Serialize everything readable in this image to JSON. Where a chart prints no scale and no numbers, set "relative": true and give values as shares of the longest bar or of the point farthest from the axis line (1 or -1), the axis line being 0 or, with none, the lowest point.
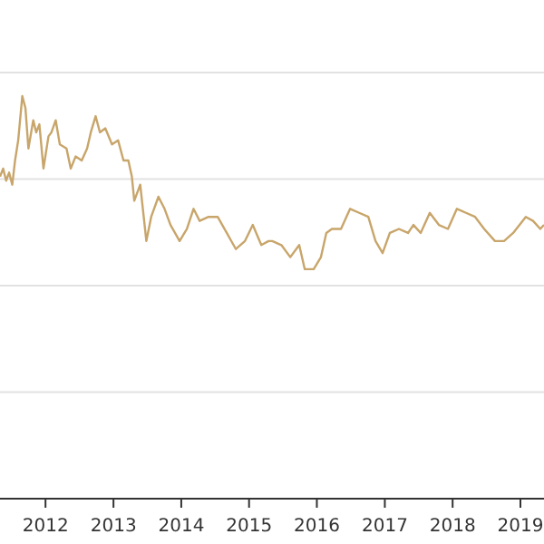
{
  "chart_data": {
    "type": "line",
    "relative": true,
    "grid": "y",
    "line_style": "solid",
    "xlim": [
      "2011-05-01",
      "2019-05-08"
    ],
    "xticks": [
      "2012",
      "2013",
      "2014",
      "2015",
      "2016",
      "2017",
      "2018",
      "2019"
    ],
    "series": [
      {
        "color": "#c8a56a",
        "x": [
          "2011-05-01",
          "2011-05-18",
          "2011-06-03",
          "2011-06-19",
          "2011-07-06",
          "2011-07-21",
          "2011-08-07",
          "2011-08-29",
          "2011-09-15",
          "2011-10-01",
          "2011-10-27",
          "2011-11-12",
          "2011-11-29",
          "2011-12-21",
          "2012-01-17",
          "2012-02-02",
          "2012-02-25",
          "2012-03-18",
          "2012-04-23",
          "2012-05-16",
          "2012-06-11",
          "2012-07-14",
          "2012-08-12",
          "2012-09-01",
          "2012-09-27",
          "2012-10-20",
          "2012-11-18",
          "2012-12-24",
          "2013-01-26",
          "2013-02-24",
          "2013-03-22",
          "2013-04-10",
          "2013-04-23",
          "2013-05-25",
          "2013-06-27",
          "2013-07-23",
          "2013-08-31",
          "2013-10-03",
          "2013-11-04",
          "2013-12-23",
          "2014-01-31",
          "2014-03-08",
          "2014-04-10",
          "2014-05-28",
          "2014-07-16",
          "2014-09-03",
          "2014-10-22",
          "2014-12-10",
          "2015-01-21",
          "2015-03-08",
          "2015-04-16",
          "2015-05-06",
          "2015-06-24",
          "2015-08-11",
          "2015-09-28",
          "2015-10-28",
          "2015-12-15",
          "2016-01-23",
          "2016-02-21",
          "2016-03-22",
          "2016-05-10",
          "2016-06-28",
          "2016-08-16",
          "2016-10-04",
          "2016-11-12",
          "2016-12-20",
          "2017-01-28",
          "2017-03-18",
          "2017-05-06",
          "2017-06-04",
          "2017-07-13",
          "2017-08-31",
          "2017-10-19",
          "2017-12-07",
          "2018-01-24",
          "2018-03-14",
          "2018-05-02",
          "2018-06-20",
          "2018-08-17",
          "2018-10-05",
          "2018-11-23",
          "2019-01-30",
          "2019-03-10",
          "2019-04-18",
          "2019-05-08"
        ],
        "values": [
          0.8,
          0.82,
          0.79,
          0.81,
          0.78,
          0.84,
          0.89,
          1.0,
          0.97,
          0.87,
          0.94,
          0.91,
          0.93,
          0.82,
          0.9,
          0.91,
          0.94,
          0.88,
          0.87,
          0.82,
          0.85,
          0.84,
          0.87,
          0.91,
          0.95,
          0.91,
          0.92,
          0.88,
          0.89,
          0.84,
          0.84,
          0.8,
          0.74,
          0.78,
          0.64,
          0.7,
          0.75,
          0.72,
          0.68,
          0.64,
          0.67,
          0.72,
          0.69,
          0.7,
          0.7,
          0.66,
          0.62,
          0.64,
          0.68,
          0.63,
          0.64,
          0.64,
          0.63,
          0.6,
          0.63,
          0.57,
          0.57,
          0.6,
          0.66,
          0.67,
          0.67,
          0.72,
          0.71,
          0.7,
          0.64,
          0.61,
          0.66,
          0.67,
          0.66,
          0.68,
          0.66,
          0.71,
          0.68,
          0.67,
          0.72,
          0.71,
          0.7,
          0.67,
          0.64,
          0.64,
          0.66,
          0.7,
          0.69,
          0.67,
          0.68
        ]
      }
    ]
  }
}
